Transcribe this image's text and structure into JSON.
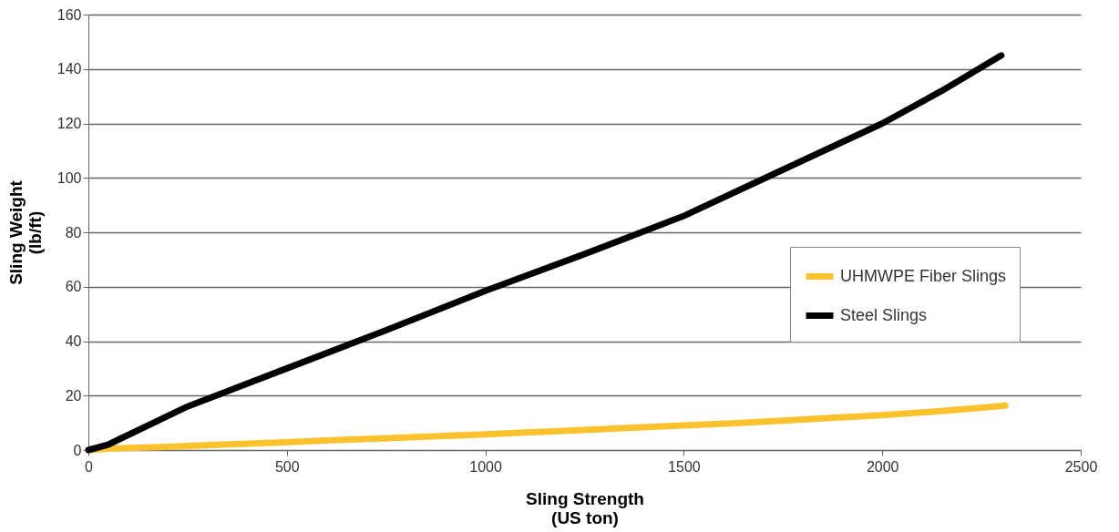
{
  "chart_data": {
    "type": "line",
    "xlabel": "Sling Strength\n(US ton)",
    "ylabel": "Sling Weight\n(lb/ft)",
    "xlim": [
      0,
      2500
    ],
    "xticks": [
      0,
      500,
      1000,
      1500,
      2000,
      2500
    ],
    "ylim": [
      0,
      160
    ],
    "yticks": [
      0,
      20,
      40,
      60,
      80,
      100,
      120,
      140,
      160
    ],
    "grid": "y",
    "legend": "right",
    "series": [
      {
        "name": "UHMWPE Fiber Slings",
        "color": "#fcc22d",
        "x": [
          0,
          60,
          200,
          340,
          480,
          600,
          740,
          870,
          1000,
          1130,
          1250,
          1370,
          1500,
          1620,
          1750,
          1870,
          2000,
          2120,
          2230,
          2310
        ],
        "values": [
          0,
          0.6,
          1.2,
          2,
          2.8,
          3.5,
          4.3,
          5,
          5.8,
          6.6,
          7.4,
          8.2,
          9,
          9.8,
          10.8,
          11.8,
          12.8,
          14,
          15.3,
          16.3
        ]
      },
      {
        "name": "Steel Slings",
        "color": "#000000",
        "x": [
          0,
          50,
          250,
          500,
          750,
          1000,
          1250,
          1500,
          1750,
          2000,
          2150,
          2300
        ],
        "values": [
          0,
          2,
          16,
          30,
          44,
          58.5,
          72,
          86,
          103,
          120,
          132,
          145
        ]
      }
    ]
  }
}
